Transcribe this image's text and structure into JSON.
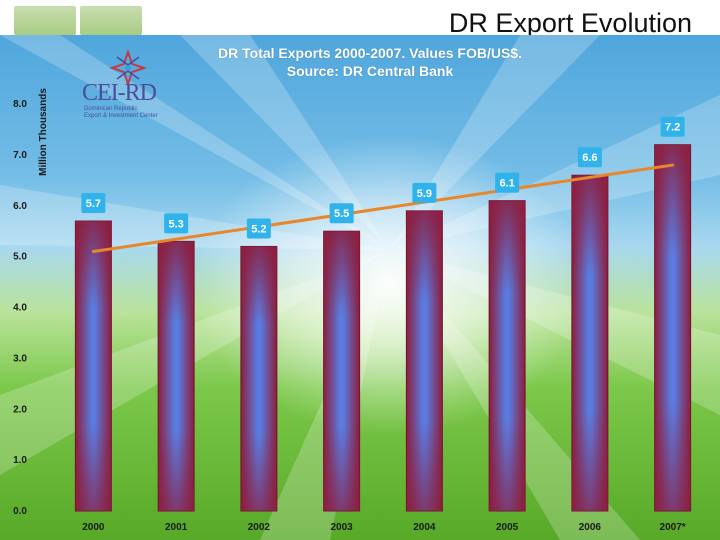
{
  "slide": {
    "title": "DR Export Evolution"
  },
  "logo": {
    "name": "CEI-RD",
    "subtitle_line1": "Dominican Republic",
    "subtitle_line2": "Export & Investment Center"
  },
  "chart_data": {
    "type": "bar",
    "title": "DR Total Exports 2000-2007.  Values FOB/US$.",
    "subtitle": "Source:  DR Central Bank",
    "ylabel": "Million Thousands",
    "xlabel": "",
    "categories": [
      "2000",
      "2001",
      "2002",
      "2003",
      "2004",
      "2005",
      "2006",
      "2007*"
    ],
    "values": [
      5.7,
      5.3,
      5.2,
      5.5,
      5.9,
      6.1,
      6.6,
      7.2
    ],
    "data_labels": [
      "5.7",
      "5.3",
      "5.2",
      "5.5",
      "5.9",
      "6.1",
      "6.6",
      "7.2"
    ],
    "ylim": [
      0,
      8
    ],
    "y_ticks": [
      "0.0",
      "1.0",
      "2.0",
      "3.0",
      "4.0",
      "5.0",
      "6.0",
      "7.0",
      "8.0"
    ],
    "trendline": {
      "start": 5.1,
      "end": 6.8,
      "color": "#e8862a"
    },
    "grid": false,
    "colors": {
      "bar_edge": "#8e1d3c",
      "bar_center": "#5a7be0",
      "label_bg": "#2fb3ea"
    }
  }
}
